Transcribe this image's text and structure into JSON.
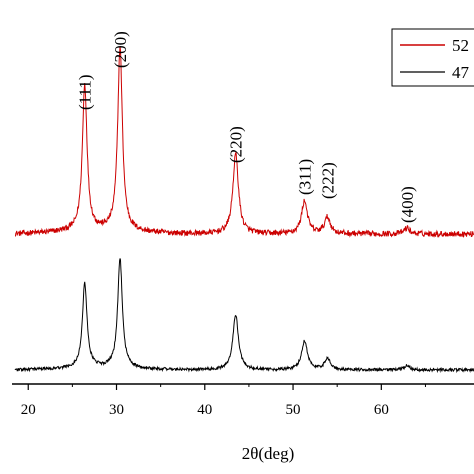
{
  "chart_data": {
    "type": "line",
    "xlabel": "2θ(deg)",
    "ylabel": "",
    "xlim": [
      18.5,
      70.5
    ],
    "x_ticks": [
      "20",
      "30",
      "40",
      "50",
      "60"
    ],
    "grid": false,
    "legend": "top-right",
    "series": [
      {
        "name": "52",
        "color": "#cc0000",
        "baseline": 0.1,
        "noise": 0.012,
        "peaks": [
          {
            "x": 26.4,
            "height": 0.62,
            "width": 0.32
          },
          {
            "x": 30.4,
            "height": 0.78,
            "width": 0.32
          },
          {
            "x": 43.5,
            "height": 0.34,
            "width": 0.38
          },
          {
            "x": 51.3,
            "height": 0.14,
            "width": 0.4
          },
          {
            "x": 53.9,
            "height": 0.07,
            "width": 0.4
          },
          {
            "x": 62.9,
            "height": 0.025,
            "width": 0.4
          }
        ]
      },
      {
        "name": "47",
        "color": "#000000",
        "baseline": 0.1,
        "noise": 0.01,
        "peaks": [
          {
            "x": 26.4,
            "height": 0.58,
            "width": 0.32
          },
          {
            "x": 30.4,
            "height": 0.75,
            "width": 0.32
          },
          {
            "x": 43.5,
            "height": 0.38,
            "width": 0.38
          },
          {
            "x": 51.3,
            "height": 0.2,
            "width": 0.4
          },
          {
            "x": 53.9,
            "height": 0.08,
            "width": 0.4
          },
          {
            "x": 62.9,
            "height": 0.03,
            "width": 0.4
          }
        ]
      }
    ],
    "annotations": [
      {
        "text": "(111)",
        "x": 26.4
      },
      {
        "text": "(200)",
        "x": 30.4
      },
      {
        "text": "(220)",
        "x": 43.5
      },
      {
        "text": "(311)",
        "x": 51.3
      },
      {
        "text": "(222)",
        "x": 53.9
      },
      {
        "text": "(400)",
        "x": 62.9
      }
    ]
  }
}
